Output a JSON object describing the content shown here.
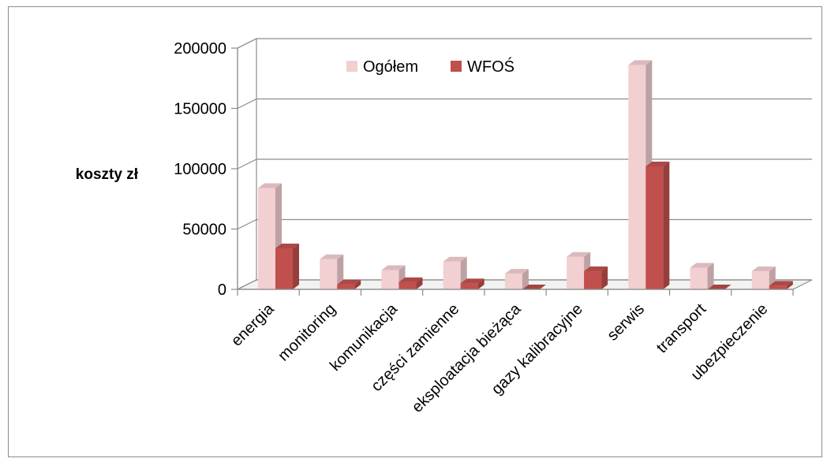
{
  "chart_data": {
    "type": "bar",
    "title": "",
    "xlabel": "",
    "ylabel": "koszty zł",
    "ylim": [
      0,
      200000
    ],
    "yticks": [
      0,
      50000,
      100000,
      150000,
      200000
    ],
    "grid": true,
    "legend_position": "top-center",
    "categories": [
      "energia",
      "monitoring",
      "komunikacja",
      "części zamienne",
      "eksploatacja bieżąca",
      "gazy kalibracyjne",
      "serwis",
      "transport",
      "ubezpieczenie"
    ],
    "series": [
      {
        "name": "Ogółem",
        "color": "#f2cfd1",
        "values": [
          84000,
          25000,
          16000,
          23000,
          13000,
          27000,
          186000,
          18000,
          15000
        ]
      },
      {
        "name": "WFOŚ",
        "color": "#c0504d",
        "values": [
          34000,
          4000,
          6000,
          5000,
          0,
          15000,
          102000,
          0,
          3000
        ]
      }
    ]
  }
}
